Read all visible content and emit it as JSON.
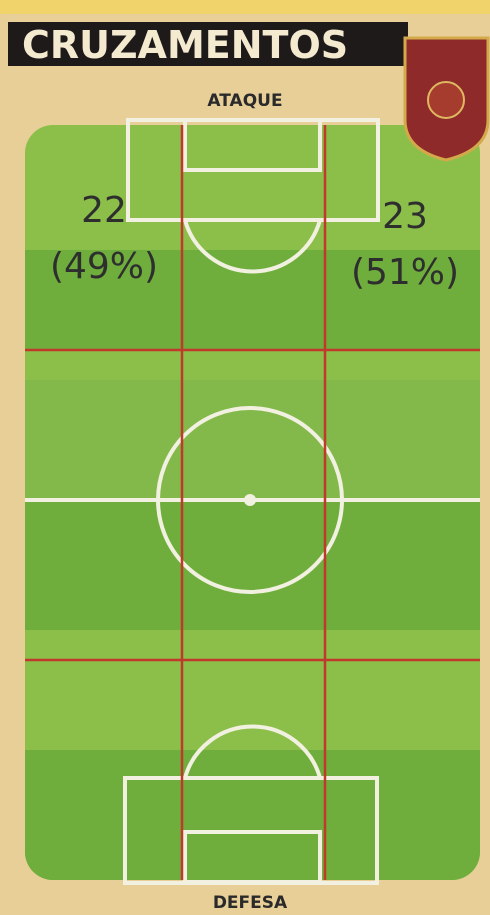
{
  "header": {
    "title": "CRUZAMENTOS"
  },
  "labels": {
    "top": "ATAQUE",
    "bottom": "DEFESA"
  },
  "zones": [
    {
      "count": "22",
      "share": "(49%)"
    },
    {
      "count": "23",
      "share": "(51%)"
    }
  ]
}
